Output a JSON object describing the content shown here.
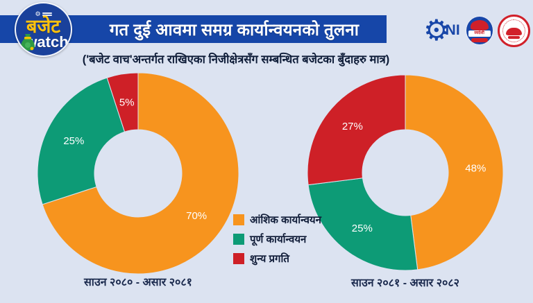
{
  "page": {
    "background_color": "#dce3f1"
  },
  "header": {
    "logo": {
      "line1": "बजेट",
      "line2": "watch"
    },
    "title": "गत दुई आवमा समग्र कार्यान्वयनको तुलना",
    "title_bar_color": "#1646a8",
    "subtitle": "('बजेट वाच'अन्तर्गत राखिएका निजीक्षेत्रसँग सम्बन्धित बजेटका बुँदाहरु मात्र)",
    "partner_logos": {
      "cni_text": "NI",
      "swadeshi_text": "स्वदेशी"
    }
  },
  "legend": {
    "items": [
      {
        "label": "आंशिक कार्यान्वयन",
        "color": "#f7941e"
      },
      {
        "label": "पूर्ण कार्यान्वयन",
        "color": "#0d9b76"
      },
      {
        "label": "शुन्य प्रगति",
        "color": "#ce2027"
      }
    ]
  },
  "chart_data": [
    {
      "type": "pie",
      "subtype": "donut",
      "caption": "साउन २०८० - असार २०८१",
      "categories": [
        "आंशिक कार्यान्वयन",
        "पूर्ण कार्यान्वयन",
        "शुन्य प्रगति"
      ],
      "values": [
        70,
        25,
        5
      ],
      "value_labels": [
        "70%",
        "25%",
        "5%"
      ],
      "colors": [
        "#f7941e",
        "#0d9b76",
        "#ce2027"
      ],
      "start_angle_deg": 0,
      "direction": "clockwise",
      "legend_position": "center-between-charts"
    },
    {
      "type": "pie",
      "subtype": "donut",
      "caption": "साउन २०८१ - असार २०८२",
      "categories": [
        "आंशिक कार्यान्वयन",
        "पूर्ण कार्यान्वयन",
        "शुन्य प्रगति"
      ],
      "values": [
        48,
        25,
        27
      ],
      "value_labels": [
        "48%",
        "25%",
        "27%"
      ],
      "colors": [
        "#f7941e",
        "#0d9b76",
        "#ce2027"
      ],
      "start_angle_deg": 0,
      "direction": "clockwise",
      "legend_position": "center-between-charts"
    }
  ]
}
